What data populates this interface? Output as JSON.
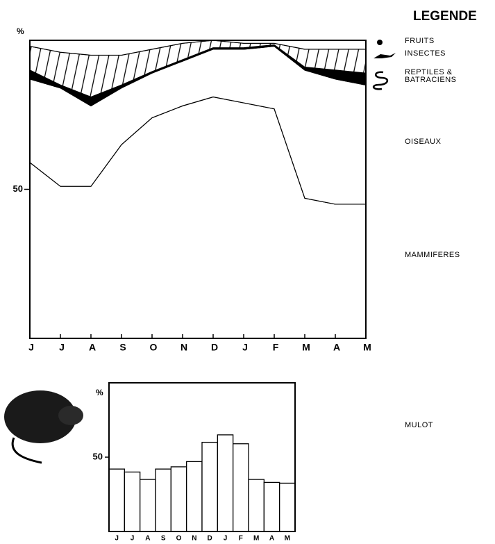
{
  "chart_data": [
    {
      "type": "stacked-area",
      "y_label": "%",
      "legend_title": "LEGENDE",
      "categories": [
        "J",
        "J",
        "A",
        "S",
        "O",
        "N",
        "D",
        "J",
        "F",
        "M",
        "A",
        "M"
      ],
      "ylim": [
        0,
        100
      ],
      "yticks": [
        50
      ],
      "series": [
        {
          "name": "MAMMIFERES",
          "color": "#ffffff",
          "values": [
            59,
            51,
            51,
            65,
            74,
            78,
            81,
            79,
            77,
            47,
            45,
            45
          ]
        },
        {
          "name": "OISEAUX",
          "color": "#ffffff",
          "values": [
            28,
            33,
            27,
            19,
            15,
            15,
            16,
            18,
            21,
            43,
            42,
            40
          ]
        },
        {
          "name": "REPTILES & BATRACIENS",
          "color": "#000000",
          "values": [
            3,
            1,
            3,
            1,
            0.5,
            0.5,
            0.5,
            0.5,
            0.5,
            1,
            3,
            4
          ]
        },
        {
          "name": "INSECTES",
          "color": "#000000",
          "hatch": true,
          "values": [
            8,
            11,
            14,
            10,
            7.5,
            5.5,
            2.5,
            1.5,
            0.5,
            6,
            7,
            8
          ]
        },
        {
          "name": "FRUITS",
          "color": "#ffffff",
          "values": [
            2,
            4,
            5,
            5,
            3,
            1,
            0,
            1,
            1,
            3,
            3,
            3
          ]
        }
      ]
    },
    {
      "type": "bar",
      "y_label": "%",
      "categories": [
        "J",
        "J",
        "A",
        "S",
        "O",
        "N",
        "D",
        "J",
        "F",
        "M",
        "A",
        "M"
      ],
      "ylim": [
        0,
        100
      ],
      "yticks": [
        50
      ],
      "series": [
        {
          "name": "MULOT",
          "color": "#ffffff",
          "values": [
            42,
            40,
            35,
            42,
            43.5,
            47,
            60,
            65,
            59,
            35,
            33,
            32.5
          ]
        }
      ]
    }
  ]
}
